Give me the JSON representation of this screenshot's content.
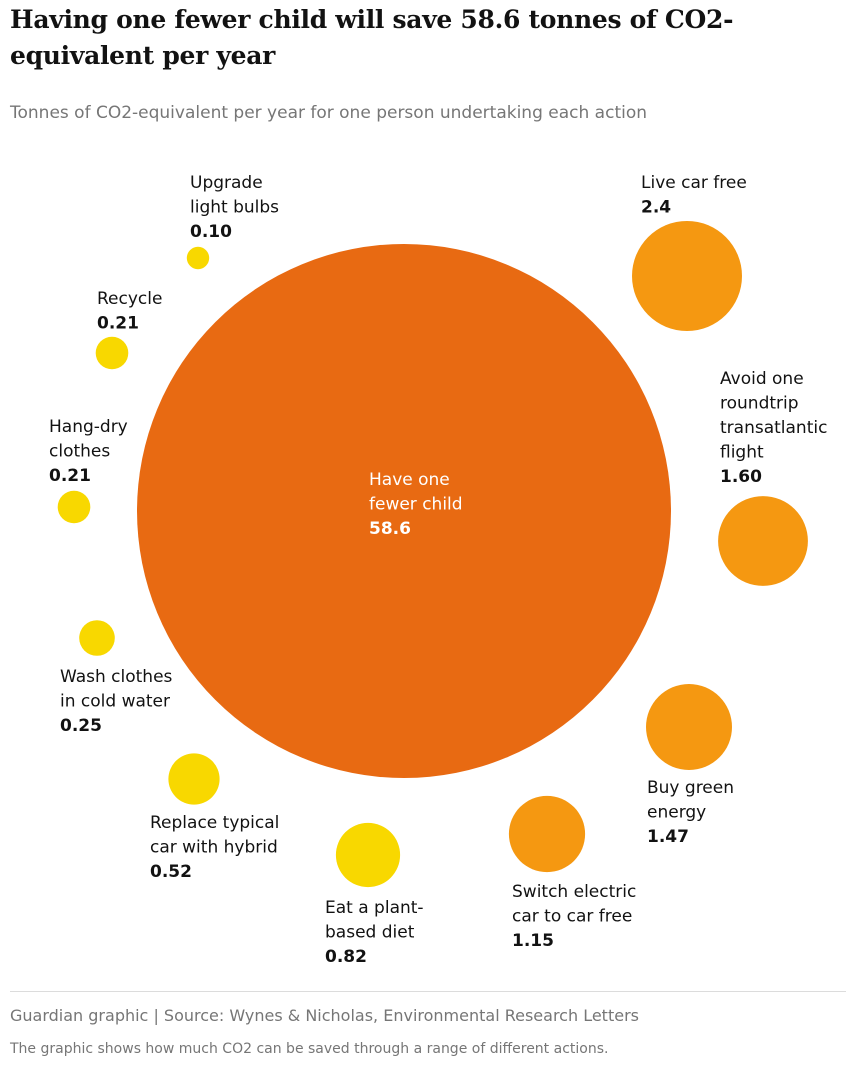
{
  "header": {
    "title": "Having one fewer child will save 58.6 tonnes of CO2-equivalent per year",
    "subtitle": "Tonnes of CO2-equivalent per year for one person undertaking each action"
  },
  "footer": {
    "source": "Guardian graphic | Source: Wynes & Nicholas, Environmental Research Letters",
    "caption": "The graphic shows how much CO2 can be saved through a range of different actions."
  },
  "colors": {
    "large": "#e86a12",
    "medium": "#f59811",
    "small": "#f8d800"
  },
  "chart_data": {
    "type": "bubble",
    "title": "Having one fewer child will save 58.6 tonnes of CO2-equivalent per year",
    "subtitle": "Tonnes of CO2-equivalent per year for one person undertaking each action",
    "unit": "tonnes CO2-equivalent per year",
    "points": [
      {
        "id": "fewer-child",
        "label": [
          "Have one",
          "fewer child"
        ],
        "value_text": "58.6",
        "value": 58.6,
        "category": "large"
      },
      {
        "id": "car-free",
        "label": [
          "Live car free"
        ],
        "value_text": "2.4",
        "value": 2.4,
        "category": "medium"
      },
      {
        "id": "flight",
        "label": [
          "Avoid one",
          "roundtrip",
          "transatlantic",
          "flight"
        ],
        "value_text": "1.60",
        "value": 1.6,
        "category": "medium"
      },
      {
        "id": "green-energy",
        "label": [
          "Buy green",
          "energy"
        ],
        "value_text": "1.47",
        "value": 1.47,
        "category": "medium"
      },
      {
        "id": "electric-car-free",
        "label": [
          "Switch electric",
          "car to car free"
        ],
        "value_text": "1.15",
        "value": 1.15,
        "category": "medium"
      },
      {
        "id": "plant-diet",
        "label": [
          "Eat a plant-",
          "based diet"
        ],
        "value_text": "0.82",
        "value": 0.82,
        "category": "small"
      },
      {
        "id": "hybrid-car",
        "label": [
          "Replace typical",
          "car with hybrid"
        ],
        "value_text": "0.52",
        "value": 0.52,
        "category": "small"
      },
      {
        "id": "cold-wash",
        "label": [
          "Wash clothes",
          "in cold water"
        ],
        "value_text": "0.25",
        "value": 0.25,
        "category": "small"
      },
      {
        "id": "hang-dry",
        "label": [
          "Hang-dry",
          "clothes"
        ],
        "value_text": "0.21",
        "value": 0.21,
        "category": "small"
      },
      {
        "id": "recycle",
        "label": [
          "Recycle"
        ],
        "value_text": "0.21",
        "value": 0.21,
        "category": "small"
      },
      {
        "id": "light-bulbs",
        "label": [
          "Upgrade",
          "light bulbs"
        ],
        "value_text": "0.10",
        "value": 0.1,
        "category": "small"
      }
    ]
  }
}
